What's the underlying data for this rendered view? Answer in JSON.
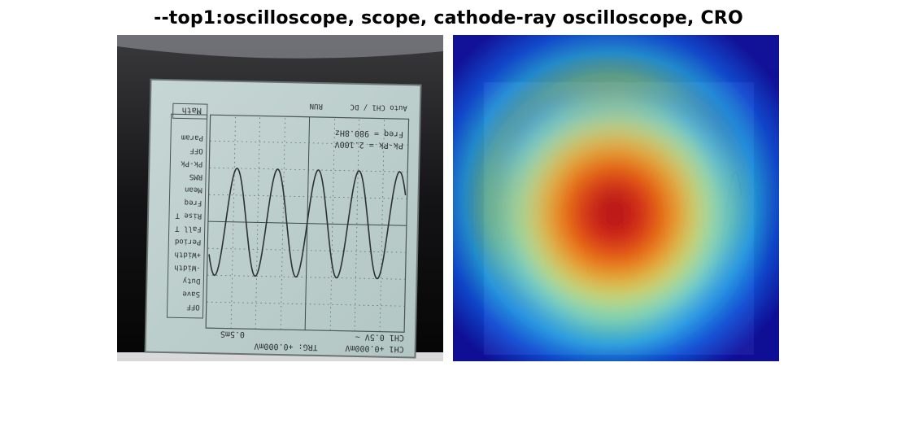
{
  "title": "--top1:oscilloscope, scope, cathode-ray oscilloscope, CRO",
  "left_panel": {
    "kind": "photo",
    "screen_text": {
      "ch1": "CH1 +0.000mV",
      "trg": "TRG: +0.000mV",
      "time": "0.5mS",
      "volt": "CH1 0.5V ~",
      "freq": "Freq = 980.8Hz",
      "pkpk": "Pk-Pk = 2.100V",
      "status": "Auto  CH1 / DC",
      "run": "RUN",
      "menu": [
        "OFF",
        "Save",
        "Duty",
        "-Width",
        "+Width",
        "Period",
        "Fall T",
        "Rise T",
        "Freq",
        "Mean",
        "RMS",
        "Pk-Pk",
        "OFF",
        "Param"
      ],
      "math": "Math"
    }
  },
  "right_panel": {
    "kind": "heatmap-overlay",
    "colormap": [
      "#00007f",
      "#0000ff",
      "#00ffff",
      "#ffff00",
      "#ff0000",
      "#7f0000"
    ]
  }
}
